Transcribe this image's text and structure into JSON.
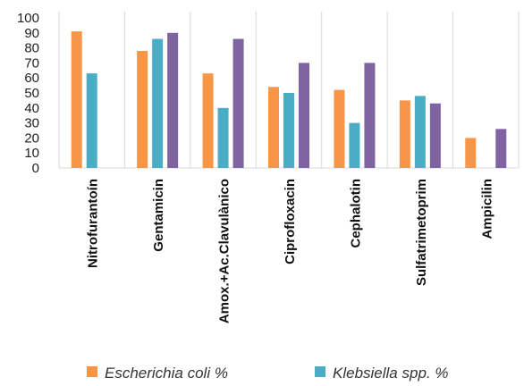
{
  "chart_data": {
    "type": "bar",
    "title": "",
    "xlabel": "",
    "ylabel": "",
    "ylim": [
      0,
      100
    ],
    "yticks": [
      0,
      10,
      20,
      30,
      40,
      50,
      60,
      70,
      80,
      90,
      100
    ],
    "grid": false,
    "legend_position": "bottom",
    "categories": [
      "Nitrofurantoín",
      "Gentamicin",
      "Amox.+Ac.Clavulànico",
      "Ciprofloxacin",
      "Cephalotin",
      "Sulfatrimetoprim",
      "Ampicilin"
    ],
    "series": [
      {
        "name": "Escherichia coli %",
        "color": "#F79646",
        "values": [
          91,
          78,
          63,
          54,
          52,
          45,
          20
        ]
      },
      {
        "name": "Klebsiella spp. %",
        "color": "#4BACC6",
        "values": [
          63,
          86,
          40,
          50,
          30,
          48,
          0
        ]
      },
      {
        "name": "",
        "color": "#8064A2",
        "values": [
          0,
          90,
          86,
          70,
          70,
          43,
          26
        ]
      }
    ],
    "axis_color": "#D9D9D9",
    "separator_color": "#D9D9D9"
  }
}
